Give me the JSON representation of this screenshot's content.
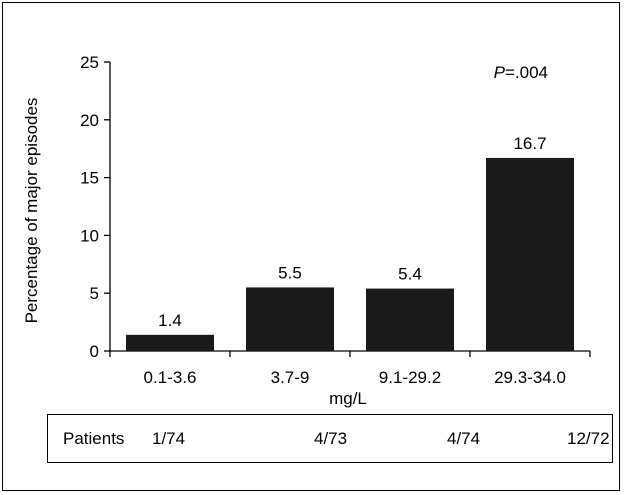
{
  "chart_data": {
    "type": "bar",
    "categories": [
      "0.1-3.6",
      "3.7-9",
      "9.1-29.2",
      "29.3-34.0"
    ],
    "values": [
      1.4,
      5.5,
      5.4,
      16.7
    ],
    "value_labels": [
      "1.4",
      "5.5",
      "5.4",
      "16.7"
    ],
    "ylabel": "Percentage of major episodes",
    "xlabel": "mg/L",
    "ylim": [
      0,
      25
    ],
    "yticks": [
      0,
      5,
      10,
      15,
      20,
      25
    ],
    "bar_color": "#1a1a1a",
    "grid": false,
    "annotation": {
      "p_label": "P",
      "p_value": "=.004"
    }
  },
  "patients_row": {
    "label": "Patients",
    "values": [
      "1/74",
      "4/73",
      "4/74",
      "12/72"
    ]
  }
}
